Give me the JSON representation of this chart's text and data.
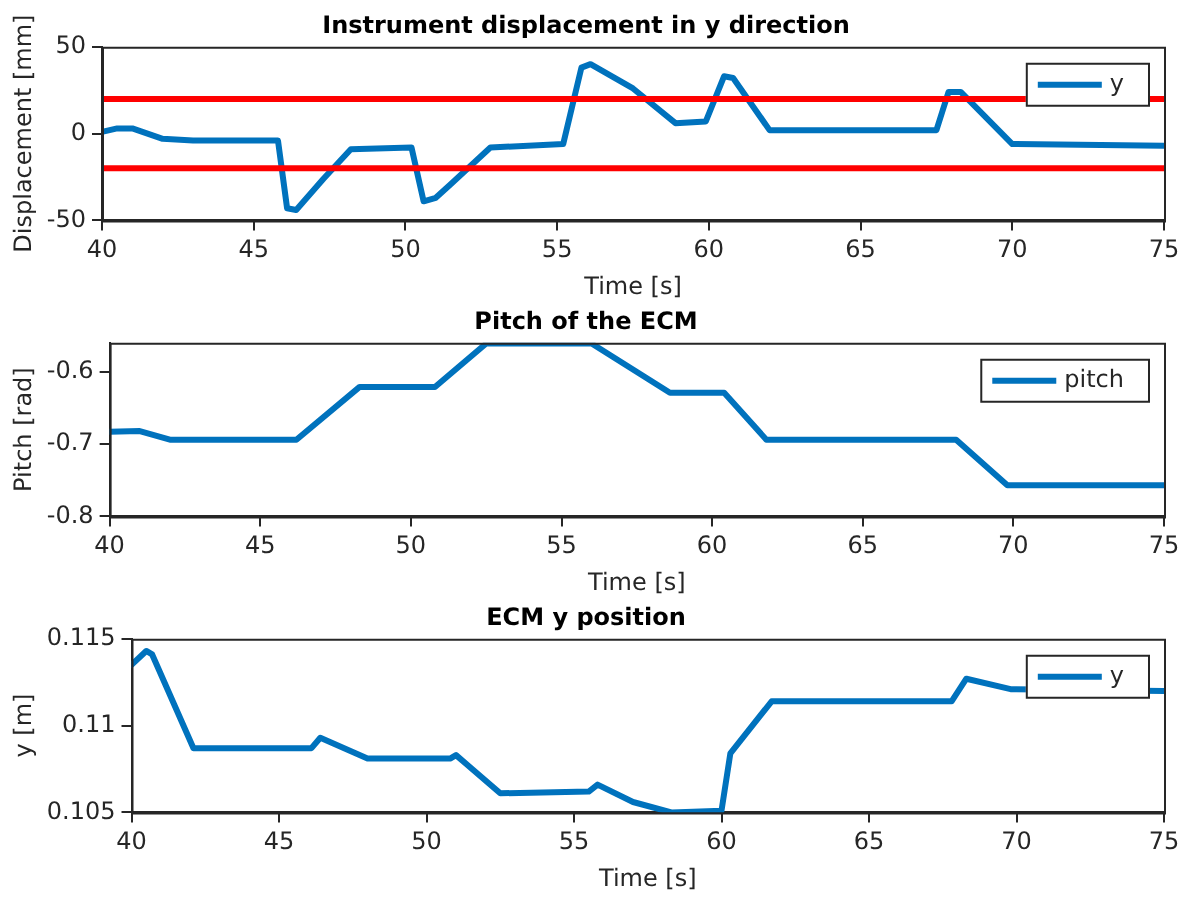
{
  "chart_data": [
    {
      "type": "line",
      "title": "Instrument displacement in y direction",
      "xlabel": "Time [s]",
      "ylabel": "Displacement [mm]",
      "xlim": [
        40,
        75
      ],
      "xticks": [
        40,
        45,
        50,
        55,
        60,
        65,
        70,
        75
      ],
      "ylim": [
        -50,
        50
      ],
      "yticks": [
        -50,
        0,
        50
      ],
      "grid": false,
      "legend": "top right",
      "marker": "none",
      "line_style": "solid",
      "ref_lines": [
        {
          "axis": "y",
          "value": 20,
          "color": "#ff0000"
        },
        {
          "axis": "y",
          "value": -20,
          "color": "#ff0000"
        }
      ],
      "series": [
        {
          "name": "y",
          "color": "#0072bd",
          "x": [
            40,
            40.5,
            41,
            42,
            43,
            45.8,
            46.1,
            46.4,
            47.3,
            48.2,
            50.2,
            50.6,
            51,
            51.5,
            52.8,
            55.2,
            55.8,
            56.1,
            57.5,
            58.9,
            59.9,
            60.5,
            60.8,
            62,
            67.5,
            67.9,
            68.3,
            70,
            75
          ],
          "values": [
            1,
            3,
            3,
            -3,
            -4,
            -4,
            -43,
            -44,
            -26,
            -9,
            -8,
            -39,
            -37,
            -29,
            -8,
            -6,
            38,
            40,
            26,
            6,
            7,
            33,
            32,
            2,
            2,
            24,
            24,
            -6,
            -7
          ]
        }
      ]
    },
    {
      "type": "line",
      "title": "Pitch of the ECM",
      "xlabel": "Time [s]",
      "ylabel": "Pitch [rad]",
      "xlim": [
        40,
        75
      ],
      "xticks": [
        40,
        45,
        50,
        55,
        60,
        65,
        70,
        75
      ],
      "ylim": [
        -0.8,
        -0.56
      ],
      "yticks": [
        -0.8,
        -0.7,
        -0.6
      ],
      "grid": false,
      "legend": "top right",
      "marker": "none",
      "line_style": "solid",
      "series": [
        {
          "name": "pitch",
          "color": "#0072bd",
          "x": [
            40,
            41,
            42,
            46.2,
            48.3,
            50.8,
            52.5,
            56,
            58.6,
            60.4,
            61.8,
            68.1,
            69.8,
            75
          ],
          "values": [
            -0.683,
            -0.682,
            -0.694,
            -0.694,
            -0.621,
            -0.621,
            -0.561,
            -0.561,
            -0.629,
            -0.629,
            -0.694,
            -0.694,
            -0.757,
            -0.757
          ]
        }
      ]
    },
    {
      "type": "line",
      "title": "ECM y position",
      "xlabel": "Time [s]",
      "ylabel": "y [m]",
      "xlim": [
        40,
        75
      ],
      "xticks": [
        40,
        45,
        50,
        55,
        60,
        65,
        70,
        75
      ],
      "ylim": [
        0.105,
        0.115
      ],
      "yticks": [
        0.105,
        0.11,
        0.115
      ],
      "grid": false,
      "legend": "top right",
      "marker": "none",
      "line_style": "solid",
      "series": [
        {
          "name": "y",
          "color": "#0072bd",
          "x": [
            40,
            40.5,
            40.7,
            42.1,
            46.1,
            46.4,
            48,
            50.8,
            51,
            52.5,
            55.5,
            55.8,
            57,
            58.3,
            60,
            60.3,
            61.7,
            67.8,
            68.3,
            69.8,
            75
          ],
          "values": [
            0.1135,
            0.1143,
            0.1141,
            0.1087,
            0.1087,
            0.1093,
            0.1081,
            0.1081,
            0.1083,
            0.1061,
            0.1062,
            0.1066,
            0.1056,
            0.105,
            0.1051,
            0.1084,
            0.1114,
            0.1114,
            0.1127,
            0.1121,
            0.112
          ]
        }
      ]
    }
  ]
}
